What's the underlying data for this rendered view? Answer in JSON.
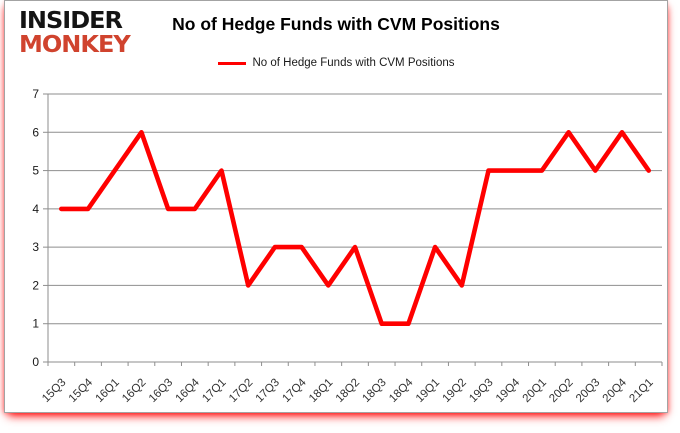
{
  "logo": {
    "line1": "INSIDER",
    "line2": "MONKEY"
  },
  "title": "No of Hedge Funds with CVM Positions",
  "legend": {
    "label": "No of Hedge Funds with CVM Positions",
    "line_color": "#ff0000"
  },
  "colors": {
    "line": "#ff0000",
    "logo_red": "#d0432e",
    "grid": "#8e8e8e",
    "axis": "#8e8e8e",
    "tick_text": "#1a1a1a"
  },
  "chart_data": {
    "type": "line",
    "title": "No of Hedge Funds with CVM Positions",
    "categories": [
      "15Q3",
      "15Q4",
      "16Q1",
      "16Q2",
      "16Q3",
      "16Q4",
      "17Q1",
      "17Q2",
      "17Q3",
      "17Q4",
      "18Q1",
      "18Q2",
      "18Q3",
      "18Q4",
      "19Q1",
      "19Q2",
      "19Q3",
      "19Q4",
      "20Q1",
      "20Q2",
      "20Q3",
      "20Q4",
      "21Q1"
    ],
    "series": [
      {
        "name": "No of Hedge Funds with CVM Positions",
        "color": "#ff0000",
        "values": [
          4,
          4,
          5,
          6,
          4,
          4,
          5,
          2,
          3,
          3,
          2,
          3,
          1,
          1,
          3,
          2,
          5,
          5,
          5,
          6,
          5,
          6,
          5
        ]
      }
    ],
    "xlabel": "",
    "ylabel": "",
    "ylim": [
      0,
      7
    ],
    "yticks": [
      0,
      1,
      2,
      3,
      4,
      5,
      6,
      7
    ],
    "grid": true,
    "legend_position": "top-center"
  }
}
